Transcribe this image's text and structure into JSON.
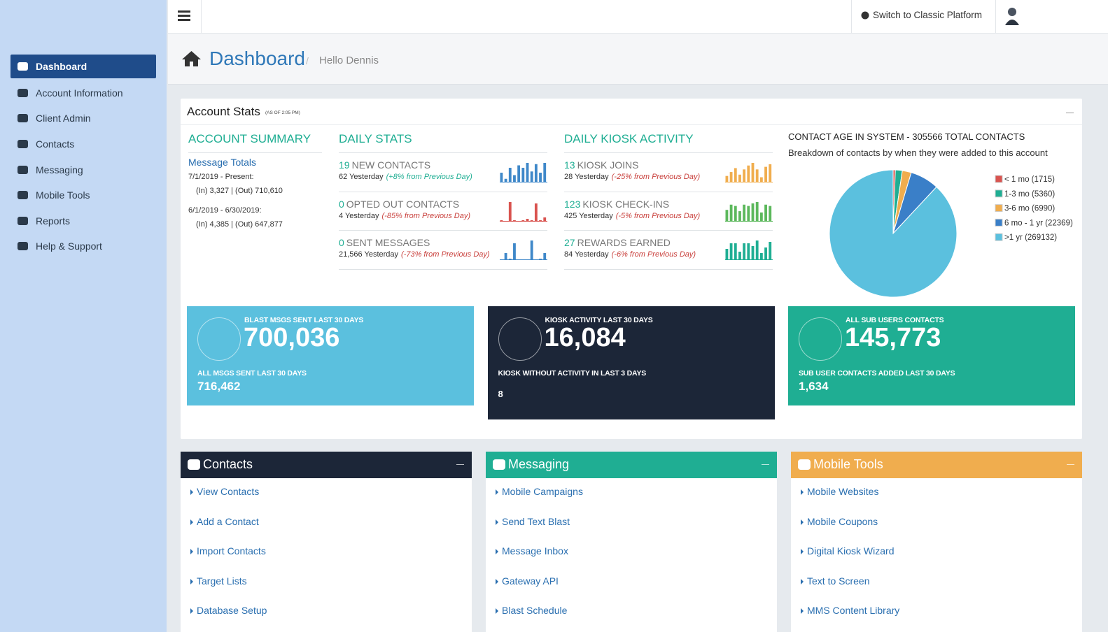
{
  "sidebar": {
    "items": [
      "Dashboard",
      "Account Information",
      "Client Admin",
      "Contacts",
      "Messaging",
      "Mobile Tools",
      "Reports",
      "Help & Support"
    ]
  },
  "header": {
    "switch": "Switch to Classic Platform"
  },
  "page": {
    "title": "Dashboard",
    "separator": "/",
    "greeting": "Hello Dennis"
  },
  "stats": {
    "title": "Account Stats",
    "asof": "(AS OF 2:05 PM)",
    "summary": {
      "heading": "ACCOUNT SUMMARY",
      "subheading": "Message Totals",
      "periods": [
        {
          "range": "7/1/2019 - Present:",
          "totals": "(In) 3,327 | (Out) 710,610"
        },
        {
          "range": "6/1/2019 - 6/30/2019:",
          "totals": "(In) 4,385 | (Out) 647,877"
        }
      ]
    },
    "daily": {
      "heading": "DAILY STATS",
      "color": "#3f88c9",
      "items": [
        {
          "value": 19,
          "label": "NEW CONTACTS",
          "yesterday": "62 Yesterday",
          "change": "(+8% from Previous Day)",
          "change_color": "#1fae93",
          "spark": [
            8,
            3,
            12,
            6,
            14,
            12,
            16,
            9,
            15,
            8,
            16
          ],
          "spark_color": "#3f88c9"
        },
        {
          "value": 0,
          "label": "OPTED OUT CONTACTS",
          "yesterday": "4 Yesterday",
          "change": "(-85% from Previous Day)",
          "change_color": "#c9413d",
          "spark": [
            1,
            0,
            14,
            1,
            0,
            1,
            2,
            1,
            13,
            1,
            3
          ],
          "spark_color": "#d9534f"
        },
        {
          "value": 0,
          "label": "SENT MESSAGES",
          "yesterday": "21,566 Yesterday",
          "change": "(-73% from Previous Day)",
          "change_color": "#c9413d",
          "spark": [
            0,
            5,
            1,
            12,
            0,
            0,
            0,
            14,
            0,
            1,
            5
          ],
          "spark_color": "#3f88c9"
        }
      ]
    },
    "kiosk": {
      "heading": "DAILY KIOSK ACTIVITY",
      "items": [
        {
          "value": 13,
          "label": "KIOSK JOINS",
          "yesterday": "28 Yesterday",
          "change": "(-25% from Previous Day)",
          "change_color": "#c9413d",
          "spark": [
            5,
            8,
            11,
            6,
            10,
            13,
            15,
            10,
            4,
            12,
            14
          ],
          "spark_color": "#f0ad4e"
        },
        {
          "value": 123,
          "label": "KIOSK CHECK-INS",
          "yesterday": "425 Yesterday",
          "change": "(-5% from Previous Day)",
          "change_color": "#c9413d",
          "spark": [
            9,
            13,
            12,
            8,
            13,
            12,
            14,
            15,
            7,
            13,
            12
          ],
          "spark_color": "#5cb85c"
        },
        {
          "value": 27,
          "label": "REWARDS EARNED",
          "yesterday": "84 Yesterday",
          "change": "(-6% from Previous Day)",
          "change_color": "#c9413d",
          "spark": [
            8,
            12,
            12,
            6,
            12,
            12,
            10,
            14,
            5,
            9,
            13
          ],
          "spark_color": "#1fae93"
        }
      ]
    },
    "pie": {
      "title": "CONTACT AGE IN SYSTEM - 305566 TOTAL CONTACTS",
      "subtitle": "Breakdown of contacts by when they were added to this account",
      "slices": [
        {
          "label": "< 1 mo (1715)",
          "value": 1715,
          "color": "#d9534f"
        },
        {
          "label": "1-3 mo (5360)",
          "value": 5360,
          "color": "#1fae93"
        },
        {
          "label": "3-6 mo (6990)",
          "value": 6990,
          "color": "#f0ad4e"
        },
        {
          "label": "6 mo - 1 yr (22369)",
          "value": 22369,
          "color": "#3a7fc8"
        },
        {
          "label": ">1 yr (269132)",
          "value": 269132,
          "color": "#5bc0de"
        }
      ]
    },
    "tiles": [
      {
        "label": "BLAST MSGS SENT LAST 30 DAYS",
        "value": "700,036",
        "sublabel": "ALL MSGS SENT LAST 30 DAYS",
        "subvalue": "716,462",
        "color": "#5bc0de"
      },
      {
        "label": "KIOSK ACTIVITY LAST 30 DAYS",
        "value": "16,084",
        "sublabel": "KIOSK WITHOUT ACTIVITY IN LAST 3 DAYS",
        "subvalue": "8",
        "color": "#1c2638"
      },
      {
        "label": "ALL SUB USERS CONTACTS",
        "value": "145,773",
        "sublabel": "SUB USER CONTACTS ADDED LAST 30 DAYS",
        "subvalue": "1,634",
        "color": "#1fae93"
      }
    ]
  },
  "panels": [
    {
      "title": "Contacts",
      "color": "#1c2638",
      "links": [
        "View Contacts",
        "Add a Contact",
        "Import Contacts",
        "Target Lists",
        "Database Setup"
      ]
    },
    {
      "title": "Messaging",
      "color": "#1fae93",
      "links": [
        "Mobile Campaigns",
        "Send Text Blast",
        "Message Inbox",
        "Gateway API",
        "Blast Schedule"
      ]
    },
    {
      "title": "Mobile Tools",
      "color": "#f0ad4e",
      "links": [
        "Mobile Websites",
        "Mobile Coupons",
        "Digital Kiosk Wizard",
        "Text to Screen",
        "MMS Content Library"
      ]
    }
  ]
}
